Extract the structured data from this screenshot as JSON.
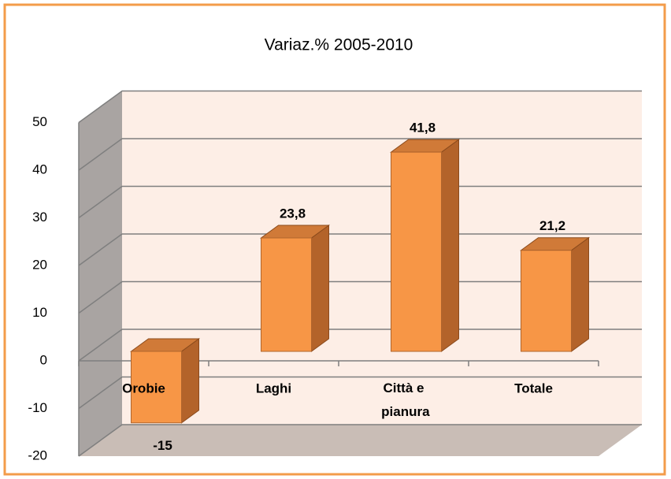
{
  "chart_data": {
    "type": "bar3d",
    "title": "Variaz.% 2005-2010",
    "categories": [
      "Orobie",
      "Laghi",
      "Città e pianura",
      "Totale"
    ],
    "values": [
      -15,
      23.8,
      41.8,
      21.2
    ],
    "value_labels": [
      "-15",
      "23,8",
      "41,8",
      "21,2"
    ],
    "color": "#f79646",
    "ylim": [
      -20,
      50
    ],
    "yticks": [
      -20,
      -10,
      0,
      10,
      20,
      30,
      40,
      50
    ],
    "grid": true
  }
}
